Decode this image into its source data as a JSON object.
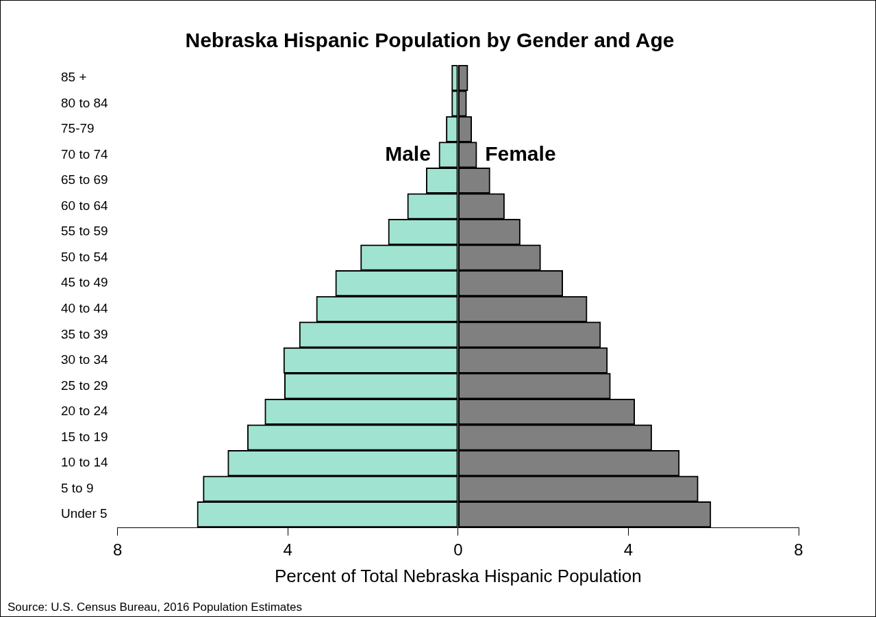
{
  "chart_data": {
    "type": "bar",
    "orientation": "horizontal",
    "stacked": true,
    "title": "Nebraska Hispanic Population by Gender and Age",
    "xlabel": "Percent of Total Nebraska Hispanic Population",
    "categories": [
      "85 +",
      "80 to 84",
      "75-79",
      "70 to 74",
      "65 to 69",
      "60 to 64",
      "55 to 59",
      "50 to 54",
      "45 to 49",
      "40 to 44",
      "35 to 39",
      "30 to 34",
      "25 to 29",
      "20 to 24",
      "15 to 19",
      "10 to 14",
      "5 to 9",
      "Under 5"
    ],
    "series": [
      {
        "name": "Male",
        "color": "#a0e3d0",
        "values": [
          -0.15,
          -0.15,
          -0.28,
          -0.45,
          -0.75,
          -1.19,
          -1.64,
          -2.29,
          -2.88,
          -3.33,
          -3.73,
          -4.1,
          -4.08,
          -4.54,
          -4.95,
          -5.41,
          -5.99,
          -6.13
        ]
      },
      {
        "name": "Female",
        "color": "#808080",
        "values": [
          0.23,
          0.2,
          0.32,
          0.44,
          0.75,
          1.09,
          1.46,
          1.94,
          2.46,
          3.03,
          3.35,
          3.51,
          3.58,
          4.15,
          4.55,
          5.2,
          5.64,
          5.94
        ]
      }
    ],
    "xlim": [
      -8,
      8
    ],
    "xticks": [
      {
        "value": -8,
        "label": "8"
      },
      {
        "value": -4,
        "label": "4"
      },
      0,
      4,
      8
    ],
    "grid": false,
    "legend": false,
    "annotations": [
      "Source: U.S. Census Bureau, 2016 Population Estimates"
    ]
  }
}
